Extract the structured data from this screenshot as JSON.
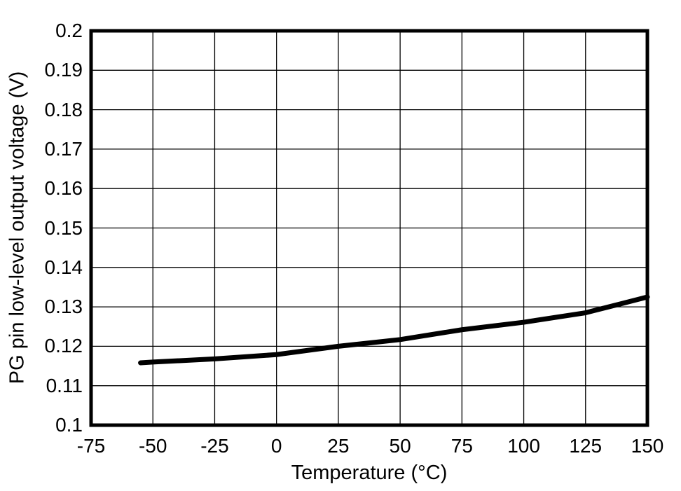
{
  "chart_data": {
    "type": "line",
    "title": "",
    "xlabel": "Temperature (°C)",
    "ylabel": "PG pin low-level output voltage (V)",
    "xlim": [
      -75,
      150
    ],
    "ylim": [
      0.1,
      0.2
    ],
    "x_ticks": [
      -75,
      -50,
      -25,
      0,
      25,
      50,
      75,
      100,
      125,
      150
    ],
    "x_tick_labels": [
      "-75",
      "-50",
      "-25",
      "0",
      "25",
      "50",
      "75",
      "100",
      "125",
      "150"
    ],
    "y_ticks": [
      0.1,
      0.11,
      0.12,
      0.13,
      0.14,
      0.15,
      0.16,
      0.17,
      0.18,
      0.19,
      0.2
    ],
    "y_tick_labels": [
      "0.1",
      "0.11",
      "0.12",
      "0.13",
      "0.14",
      "0.15",
      "0.16",
      "0.17",
      "0.18",
      "0.19",
      "0.2"
    ],
    "grid": true,
    "legend": false,
    "series": [
      {
        "name": "PG pin low-level output voltage",
        "color": "#000000",
        "x": [
          -55,
          -50,
          -25,
          0,
          25,
          50,
          75,
          100,
          125,
          150
        ],
        "y": [
          0.1158,
          0.116,
          0.1168,
          0.1179,
          0.12,
          0.1217,
          0.1242,
          0.1261,
          0.1285,
          0.1325
        ]
      }
    ]
  },
  "colors": {
    "background": "#ffffff",
    "text": "#000000",
    "frame": "#000000",
    "gridline": "#000000",
    "curve": "#000000"
  }
}
